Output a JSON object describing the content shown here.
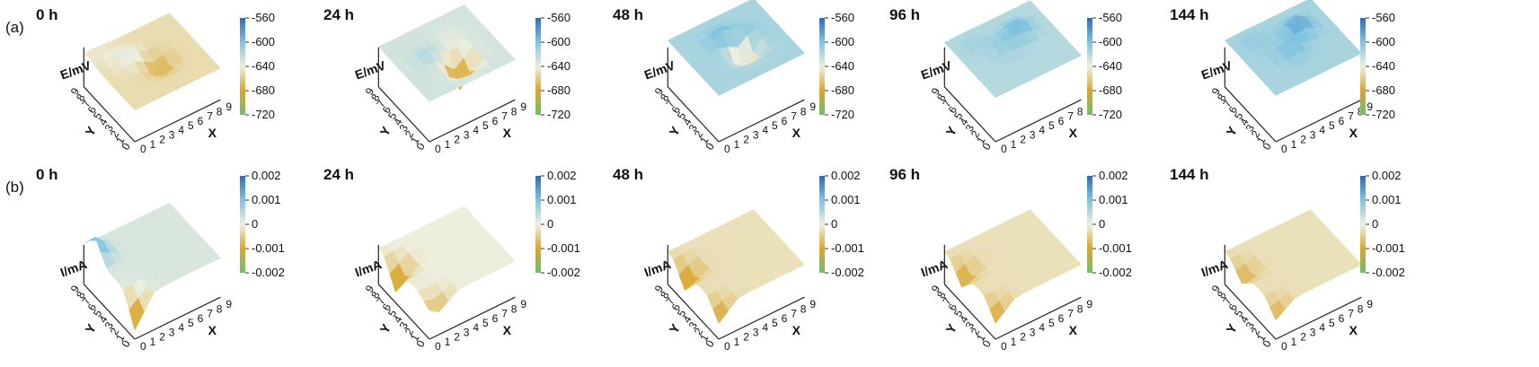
{
  "row_labels": [
    "(a)",
    "(b)"
  ],
  "chart_data": [
    {
      "type": "surface3d",
      "row": "(a)",
      "quantity": "E/mV",
      "x_axis_label": "X",
      "y_axis_label": "Y",
      "x_ticks": [
        "0",
        "1",
        "2",
        "3",
        "4",
        "5",
        "6",
        "7",
        "8",
        "9"
      ],
      "y_ticks": [
        "0",
        "1",
        "2",
        "3",
        "4",
        "5",
        "6",
        "7",
        "8",
        "9"
      ],
      "colorbar": {
        "ticks": [
          -560,
          -600,
          -640,
          -680,
          -720
        ],
        "range": [
          -720,
          -560
        ],
        "colors": [
          "#2f6bb5",
          "#7fc4e0",
          "#eeeedd",
          "#d9a62e",
          "#6cc06c"
        ]
      },
      "panels": [
        {
          "title": "0 h",
          "base_mV": -650,
          "features": [
            {
              "x": 5,
              "y": 4,
              "amp": -30
            },
            {
              "x": 3,
              "y": 6,
              "amp": 20
            },
            {
              "x": 1,
              "y": 8,
              "amp": 10
            }
          ]
        },
        {
          "title": "24 h",
          "base_mV": -630,
          "features": [
            {
              "x": 5,
              "y": 3,
              "amp": -70
            },
            {
              "x": 3,
              "y": 5,
              "amp": 15
            },
            {
              "x": 6,
              "y": 6,
              "amp": -10
            }
          ]
        },
        {
          "title": "48 h",
          "base_mV": -615,
          "features": [
            {
              "x": 5,
              "y": 4,
              "amp": -60
            },
            {
              "x": 4,
              "y": 6,
              "amp": 25
            },
            {
              "x": 6,
              "y": 5,
              "amp": 20
            }
          ]
        },
        {
          "title": "96 h",
          "base_mV": -620,
          "features": [
            {
              "x": 6,
              "y": 6,
              "amp": 30
            },
            {
              "x": 4,
              "y": 5,
              "amp": 15
            },
            {
              "x": 2,
              "y": 7,
              "amp": 10
            }
          ]
        },
        {
          "title": "144 h",
          "base_mV": -615,
          "features": [
            {
              "x": 6,
              "y": 6,
              "amp": 35
            },
            {
              "x": 4,
              "y": 4,
              "amp": 20
            },
            {
              "x": 2,
              "y": 7,
              "amp": 10
            }
          ]
        }
      ]
    },
    {
      "type": "surface3d",
      "row": "(b)",
      "quantity": "I/mA",
      "x_axis_label": "X",
      "y_axis_label": "Y",
      "x_ticks": [
        "0",
        "1",
        "2",
        "3",
        "4",
        "5",
        "6",
        "7",
        "8",
        "9"
      ],
      "y_ticks": [
        "0",
        "1",
        "2",
        "3",
        "4",
        "5",
        "6",
        "7",
        "8",
        "9"
      ],
      "colorbar": {
        "ticks": [
          0.002,
          0.001,
          0,
          -0.001,
          -0.002
        ],
        "range": [
          -0.002,
          0.002
        ],
        "colors": [
          "#2f6bb5",
          "#7fc4e0",
          "#eeeedd",
          "#d9a62e",
          "#6cc06c"
        ]
      },
      "panels": [
        {
          "title": "0 h",
          "base_mA": 0.0002,
          "features": [
            {
              "x": 0,
              "y": 7,
              "amp": 0.0012
            },
            {
              "x": 0,
              "y": 0,
              "amp": -0.0018
            }
          ]
        },
        {
          "title": "24 h",
          "base_mA": 0.0,
          "features": [
            {
              "x": 0,
              "y": 6,
              "amp": -0.0015
            },
            {
              "x": 1,
              "y": 0,
              "amp": -0.0008
            }
          ]
        },
        {
          "title": "48 h",
          "base_mA": -0.0002,
          "features": [
            {
              "x": 0,
              "y": 6,
              "amp": -0.0012
            },
            {
              "x": 0,
              "y": 0,
              "amp": -0.001
            }
          ]
        },
        {
          "title": "96 h",
          "base_mA": -0.0002,
          "features": [
            {
              "x": 0,
              "y": 6,
              "amp": -0.001
            },
            {
              "x": 0,
              "y": 0,
              "amp": -0.001
            }
          ]
        },
        {
          "title": "144 h",
          "base_mA": -0.0002,
          "features": [
            {
              "x": 0,
              "y": 6,
              "amp": -0.0008
            },
            {
              "x": 0,
              "y": 0,
              "amp": -0.0008
            }
          ]
        }
      ]
    }
  ]
}
